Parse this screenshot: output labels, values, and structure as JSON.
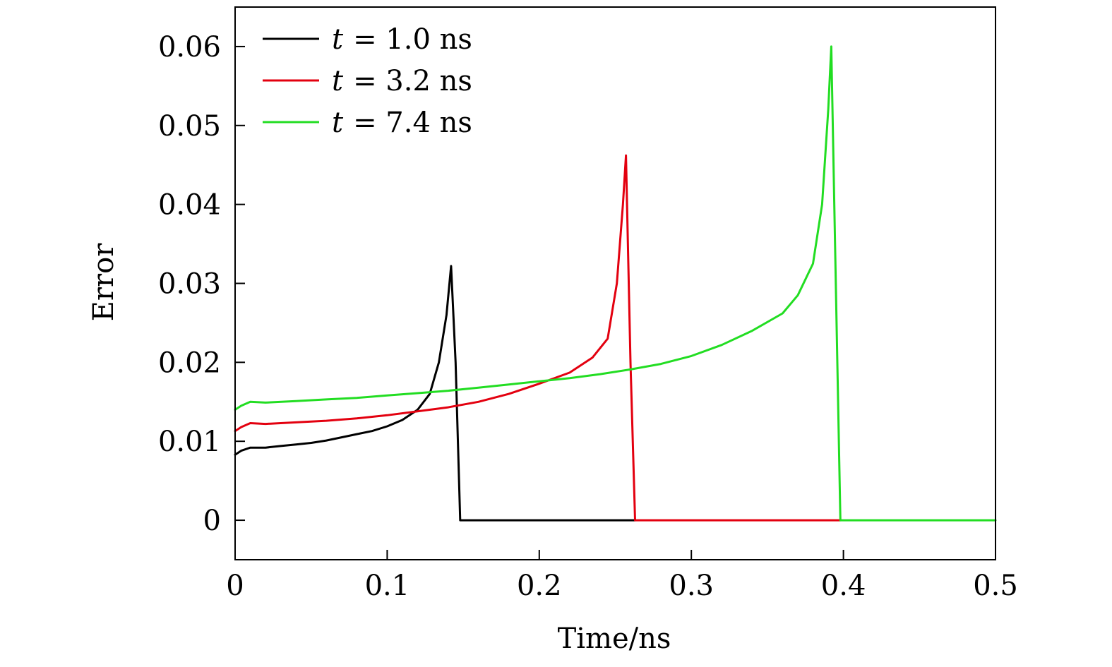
{
  "chart_data": {
    "type": "line",
    "title": "",
    "xlabel": "Time/ns",
    "ylabel": "Error",
    "xlim": [
      0,
      0.5
    ],
    "ylim": [
      -0.005,
      0.065
    ],
    "x_ticks": [
      0,
      0.1,
      0.2,
      0.3,
      0.4,
      0.5
    ],
    "x_tick_labels": [
      "0",
      "0.1",
      "0.2",
      "0.3",
      "0.4",
      "0.5"
    ],
    "y_ticks": [
      0,
      0.01,
      0.02,
      0.03,
      0.04,
      0.05,
      0.06
    ],
    "y_tick_labels": [
      "0",
      "0.01",
      "0.02",
      "0.03",
      "0.04",
      "0.05",
      "0.06"
    ],
    "grid": false,
    "legend_position": "top-left",
    "series": [
      {
        "name": "t = 1.0 ns",
        "legend_var": "t",
        "legend_rest": "= 1.0 ns",
        "color": "#000000",
        "x": [
          0.0,
          0.004,
          0.01,
          0.02,
          0.03,
          0.04,
          0.05,
          0.06,
          0.07,
          0.08,
          0.09,
          0.1,
          0.11,
          0.12,
          0.128,
          0.134,
          0.139,
          0.142,
          0.145,
          0.148,
          0.15,
          0.2,
          0.25,
          0.263
        ],
        "y": [
          0.0083,
          0.0088,
          0.0092,
          0.0092,
          0.0094,
          0.0096,
          0.0098,
          0.0101,
          0.0105,
          0.0109,
          0.0113,
          0.0119,
          0.0127,
          0.014,
          0.016,
          0.02,
          0.026,
          0.0322,
          0.02,
          0.0,
          0.0,
          0.0,
          0.0,
          0.0
        ]
      },
      {
        "name": "t = 3.2 ns",
        "legend_var": "t",
        "legend_rest": "= 3.2 ns",
        "color": "#e3000f",
        "x": [
          0.0,
          0.004,
          0.01,
          0.02,
          0.04,
          0.06,
          0.08,
          0.1,
          0.12,
          0.14,
          0.16,
          0.18,
          0.2,
          0.22,
          0.235,
          0.245,
          0.251,
          0.255,
          0.257,
          0.26,
          0.263,
          0.3,
          0.35,
          0.398
        ],
        "y": [
          0.0113,
          0.0118,
          0.0123,
          0.0122,
          0.0124,
          0.0126,
          0.0129,
          0.0133,
          0.0138,
          0.0143,
          0.015,
          0.016,
          0.0173,
          0.0187,
          0.0206,
          0.023,
          0.03,
          0.04,
          0.0462,
          0.02,
          0.0,
          0.0,
          0.0,
          0.0
        ]
      },
      {
        "name": "t = 7.4 ns",
        "legend_var": "t",
        "legend_rest": "= 7.4 ns",
        "color": "#22dd22",
        "x": [
          0.0,
          0.004,
          0.01,
          0.02,
          0.04,
          0.06,
          0.08,
          0.1,
          0.12,
          0.14,
          0.16,
          0.18,
          0.2,
          0.22,
          0.24,
          0.26,
          0.28,
          0.3,
          0.32,
          0.34,
          0.36,
          0.37,
          0.38,
          0.386,
          0.39,
          0.392,
          0.395,
          0.398,
          0.42,
          0.45,
          0.5
        ],
        "y": [
          0.014,
          0.0145,
          0.015,
          0.0149,
          0.0151,
          0.0153,
          0.0155,
          0.0158,
          0.0161,
          0.0164,
          0.0168,
          0.0172,
          0.0176,
          0.018,
          0.0185,
          0.0191,
          0.0198,
          0.0208,
          0.0222,
          0.024,
          0.0262,
          0.0285,
          0.0325,
          0.04,
          0.052,
          0.06,
          0.03,
          0.0,
          0.0,
          0.0,
          0.0
        ]
      }
    ]
  }
}
